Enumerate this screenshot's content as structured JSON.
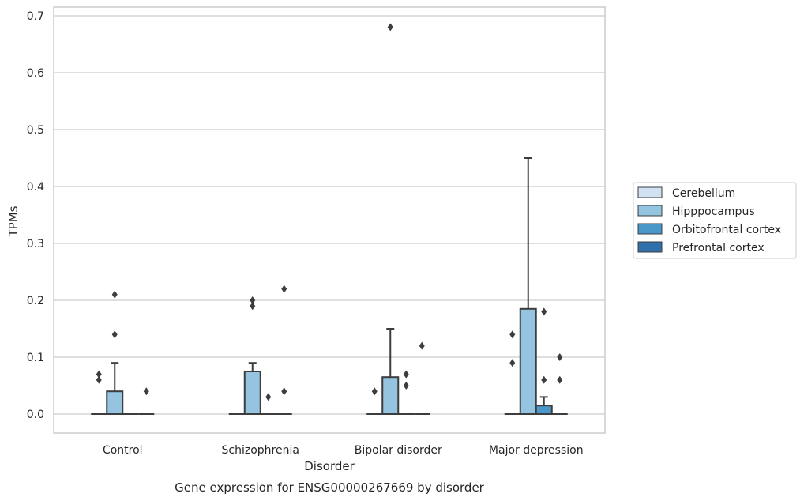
{
  "chart_data": {
    "type": "box",
    "title": "Gene expression for ENSG00000267669 by disorder",
    "xlabel": "Disorder",
    "ylabel": "TPMs",
    "ylim": [
      -0.033,
      0.715
    ],
    "yticks": [
      "0.0",
      "0.1",
      "0.2",
      "0.3",
      "0.4",
      "0.5",
      "0.6",
      "0.7"
    ],
    "grid": "horizontal",
    "legend_position": "right",
    "categories": [
      "Control",
      "Schizophrenia",
      "Bipolar disorder",
      "Major depression"
    ],
    "series": [
      {
        "name": "Cerebellum",
        "color": "#d0e1f2",
        "boxes": [
          {
            "q1": 0,
            "median": 0,
            "q3": 0,
            "whisker_low": 0,
            "whisker_high": 0,
            "outliers": [
              0.06,
              0.07
            ]
          },
          {
            "q1": 0,
            "median": 0,
            "q3": 0,
            "whisker_low": 0,
            "whisker_high": 0,
            "outliers": []
          },
          {
            "q1": 0,
            "median": 0,
            "q3": 0,
            "whisker_low": 0,
            "whisker_high": 0,
            "outliers": [
              0.04
            ]
          },
          {
            "q1": 0,
            "median": 0,
            "q3": 0,
            "whisker_low": 0,
            "whisker_high": 0,
            "outliers": [
              0.09,
              0.14
            ]
          }
        ]
      },
      {
        "name": "Hipppocampus",
        "color": "#94c4df",
        "boxes": [
          {
            "q1": 0,
            "median": 0,
            "q3": 0.04,
            "whisker_low": 0,
            "whisker_high": 0.09,
            "outliers": [
              0.14,
              0.21
            ]
          },
          {
            "q1": 0,
            "median": 0,
            "q3": 0.075,
            "whisker_low": 0,
            "whisker_high": 0.09,
            "outliers": [
              0.19,
              0.2
            ]
          },
          {
            "q1": 0,
            "median": 0,
            "q3": 0.065,
            "whisker_low": 0,
            "whisker_high": 0.15,
            "outliers": [
              0.68
            ]
          },
          {
            "q1": 0,
            "median": 0,
            "q3": 0.185,
            "whisker_low": 0,
            "whisker_high": 0.45,
            "outliers": []
          }
        ]
      },
      {
        "name": "Orbitofrontal cortex",
        "color": "#4a98c9",
        "boxes": [
          {
            "q1": 0,
            "median": 0,
            "q3": 0,
            "whisker_low": 0,
            "whisker_high": 0,
            "outliers": []
          },
          {
            "q1": 0,
            "median": 0,
            "q3": 0,
            "whisker_low": 0,
            "whisker_high": 0,
            "outliers": [
              0.03
            ]
          },
          {
            "q1": 0,
            "median": 0,
            "q3": 0,
            "whisker_low": 0,
            "whisker_high": 0,
            "outliers": [
              0.05,
              0.07
            ]
          },
          {
            "q1": 0,
            "median": 0,
            "q3": 0.015,
            "whisker_low": 0,
            "whisker_high": 0.03,
            "outliers": [
              0.06,
              0.18
            ]
          }
        ]
      },
      {
        "name": "Prefrontal cortex",
        "color": "#2e6fac",
        "boxes": [
          {
            "q1": 0,
            "median": 0,
            "q3": 0,
            "whisker_low": 0,
            "whisker_high": 0,
            "outliers": [
              0.04
            ]
          },
          {
            "q1": 0,
            "median": 0,
            "q3": 0,
            "whisker_low": 0,
            "whisker_high": 0,
            "outliers": [
              0.04,
              0.22
            ]
          },
          {
            "q1": 0,
            "median": 0,
            "q3": 0,
            "whisker_low": 0,
            "whisker_high": 0,
            "outliers": [
              0.12
            ]
          },
          {
            "q1": 0,
            "median": 0,
            "q3": 0,
            "whisker_low": 0,
            "whisker_high": 0,
            "outliers": [
              0.06,
              0.1
            ]
          }
        ]
      }
    ]
  }
}
